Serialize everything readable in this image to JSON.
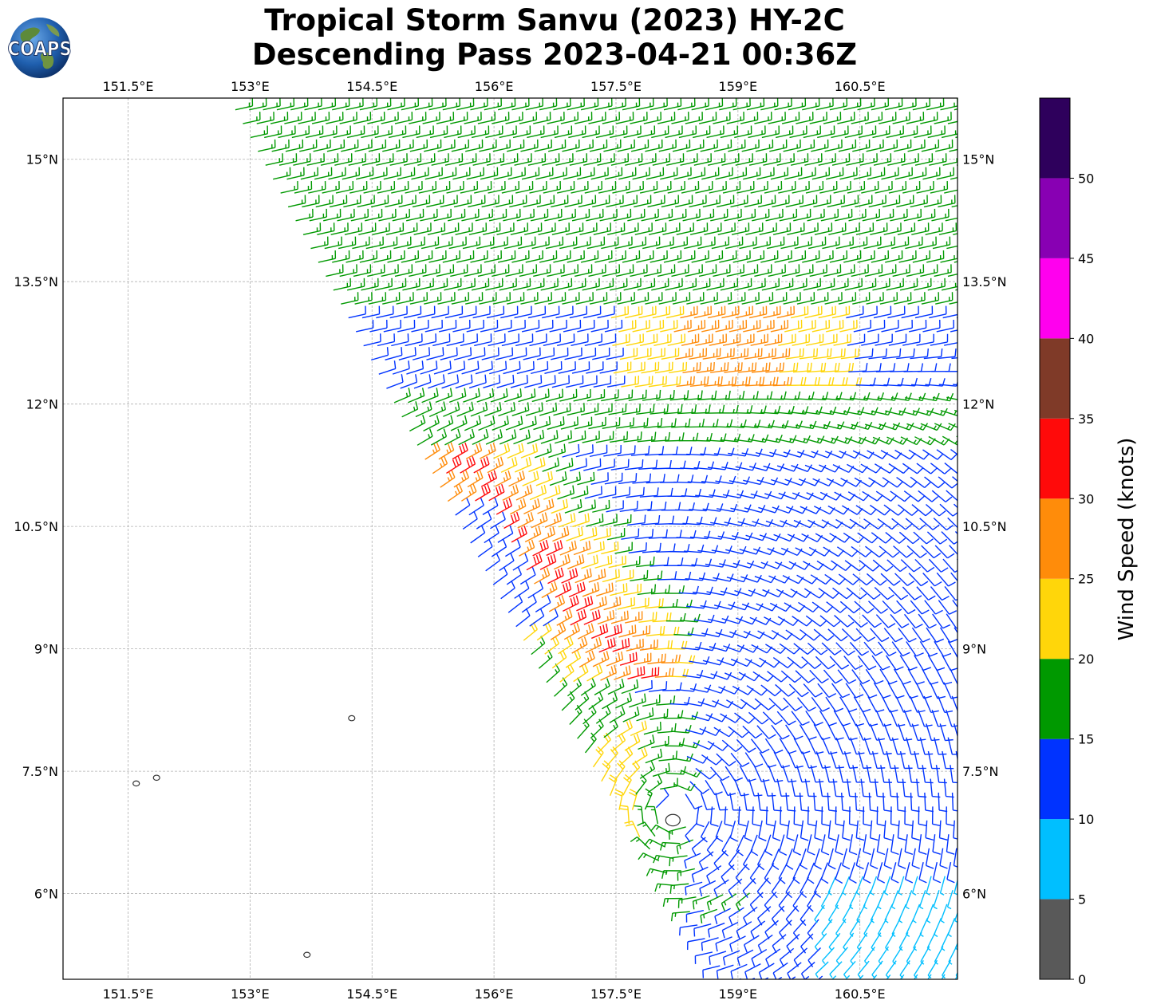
{
  "title": {
    "line1": "Tropical Storm Sanvu (2023) HY-2C",
    "line2": "Descending Pass 2023-04-21 00:36Z"
  },
  "logo": {
    "text": "COAPS",
    "icon": "globe-icon"
  },
  "map": {
    "lon_range": [
      150.7,
      161.7
    ],
    "lat_range": [
      4.95,
      15.75
    ],
    "lon_ticks": [
      {
        "value": 151.5,
        "label": "151.5°E"
      },
      {
        "value": 153.0,
        "label": "153°E"
      },
      {
        "value": 154.5,
        "label": "154.5°E"
      },
      {
        "value": 156.0,
        "label": "156°E"
      },
      {
        "value": 157.5,
        "label": "157.5°E"
      },
      {
        "value": 159.0,
        "label": "159°E"
      },
      {
        "value": 160.5,
        "label": "160.5°E"
      }
    ],
    "lat_ticks": [
      {
        "value": 15.0,
        "label": "15°N"
      },
      {
        "value": 13.5,
        "label": "13.5°N"
      },
      {
        "value": 12.0,
        "label": "12°N"
      },
      {
        "value": 10.5,
        "label": "10.5°N"
      },
      {
        "value": 9.0,
        "label": "9°N"
      },
      {
        "value": 7.5,
        "label": "7.5°N"
      },
      {
        "value": 6.0,
        "label": "6°N"
      }
    ],
    "gridlines": true,
    "swath_west_edge": [
      [
        153.0,
        15.4
      ],
      [
        158.7,
        4.95
      ]
    ],
    "storm_center": [
      158.2,
      7.0
    ],
    "islands": [
      [
        151.6,
        7.35
      ],
      [
        151.85,
        7.42
      ],
      [
        154.25,
        8.15
      ],
      [
        153.7,
        5.25
      ],
      [
        158.2,
        6.9
      ]
    ]
  },
  "colorbar": {
    "label": "Wind Speed (knots)",
    "ticks": [
      "0",
      "5",
      "10",
      "15",
      "20",
      "25",
      "30",
      "35",
      "40",
      "45",
      "50"
    ],
    "max": 55,
    "bins": [
      {
        "from": 0,
        "to": 5,
        "color": "#595959"
      },
      {
        "from": 5,
        "to": 10,
        "color": "#00bfff"
      },
      {
        "from": 10,
        "to": 15,
        "color": "#0033ff"
      },
      {
        "from": 15,
        "to": 20,
        "color": "#009900"
      },
      {
        "from": 20,
        "to": 25,
        "color": "#ffd60a"
      },
      {
        "from": 25,
        "to": 30,
        "color": "#ff8c0a"
      },
      {
        "from": 30,
        "to": 35,
        "color": "#ff0a0a"
      },
      {
        "from": 35,
        "to": 40,
        "color": "#7f3a28"
      },
      {
        "from": 40,
        "to": 45,
        "color": "#ff00ee"
      },
      {
        "from": 45,
        "to": 50,
        "color": "#8800b3"
      },
      {
        "from": 50,
        "to": 55,
        "color": "#2e005c"
      }
    ]
  }
}
